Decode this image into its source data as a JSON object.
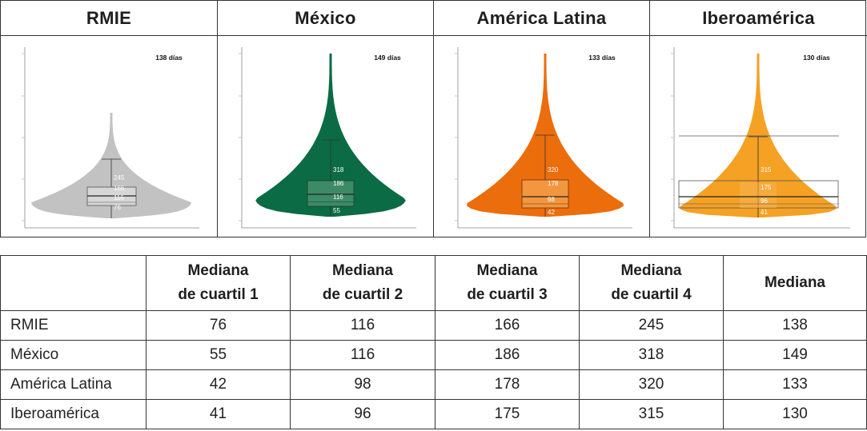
{
  "panels": [
    {
      "title": "RMIE",
      "days_label": "138 días",
      "fill": "#c2c2c2",
      "box_fill": "#d6d6d6",
      "box_stroke": "#555555",
      "labels": [
        "245",
        "166",
        "116",
        "76"
      ]
    },
    {
      "title": "México",
      "days_label": "149 días",
      "fill": "#0b6b44",
      "box_fill": "#3d8a66",
      "box_stroke": "#1d3d2d",
      "labels": [
        "318",
        "186",
        "116",
        "55"
      ]
    },
    {
      "title": "América Latina",
      "days_label": "133 días",
      "fill": "#ec6d0c",
      "box_fill": "#f39640",
      "box_stroke": "#6b3305",
      "labels": [
        "320",
        "178",
        "98",
        "42"
      ]
    },
    {
      "title": "Iberoamérica",
      "days_label": "130 días",
      "fill": "#f4a124",
      "box_fill": "#f6b24c",
      "box_stroke": "#555555",
      "labels": [
        "315",
        "175",
        "96",
        "41"
      ]
    }
  ],
  "table": {
    "headers": [
      "",
      [
        "Mediana",
        "de cuartil 1"
      ],
      [
        "Mediana",
        "de cuartil 2"
      ],
      [
        "Mediana",
        "de cuartil 3"
      ],
      [
        "Mediana",
        "de cuartil 4"
      ],
      [
        "Mediana"
      ]
    ],
    "rows": [
      {
        "name": "RMIE",
        "values": [
          "76",
          "116",
          "166",
          "245",
          "138"
        ]
      },
      {
        "name": "México",
        "values": [
          "55",
          "116",
          "186",
          "318",
          "149"
        ]
      },
      {
        "name": "América Latina",
        "values": [
          "42",
          "98",
          "178",
          "320",
          "133"
        ]
      },
      {
        "name": "Iberoamérica",
        "values": [
          "41",
          "96",
          "175",
          "315",
          "130"
        ]
      }
    ]
  },
  "chart_data": {
    "type": "table",
    "columns": [
      "Mediana de cuartil 1",
      "Mediana de cuartil 2",
      "Mediana de cuartil 3",
      "Mediana de cuartil 4",
      "Mediana"
    ],
    "rows": [
      "RMIE",
      "México",
      "América Latina",
      "Iberoamérica"
    ],
    "values": [
      [
        76,
        116,
        166,
        245,
        138
      ],
      [
        55,
        116,
        186,
        318,
        149
      ],
      [
        42,
        98,
        178,
        320,
        133
      ],
      [
        41,
        96,
        175,
        315,
        130
      ]
    ],
    "violin_titles": [
      "RMIE",
      "México",
      "América Latina",
      "Iberoamérica"
    ],
    "violin_annotations": [
      "138 días",
      "149 días",
      "133 días",
      "130 días"
    ]
  }
}
